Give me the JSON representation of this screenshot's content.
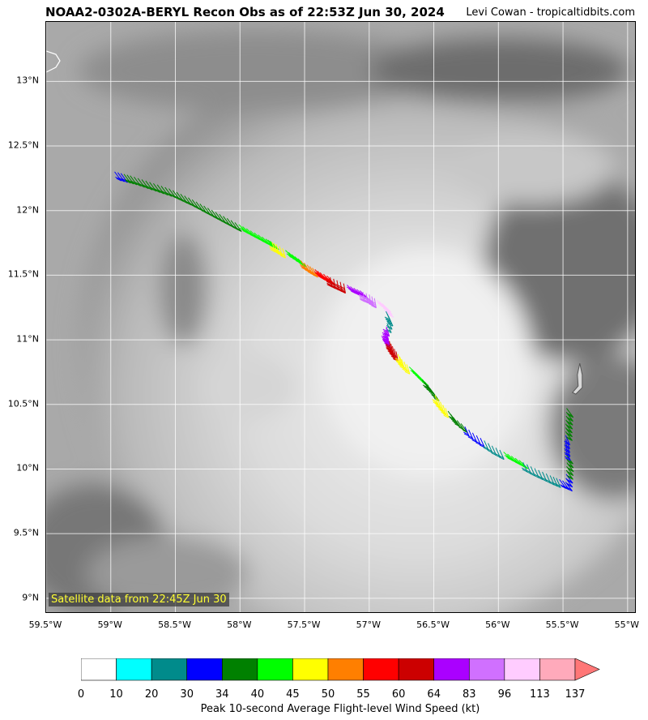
{
  "header": {
    "title": "NOAA2-0302A-BERYL Recon Obs as of 22:53Z Jun 30, 2024",
    "credit": "Levi Cowan - tropicaltidbits.com"
  },
  "map": {
    "satellite_label": "Satellite data from 22:45Z Jun 30",
    "lon_range": [
      -59.5,
      -54.93
    ],
    "lat_range": [
      8.88,
      13.46
    ],
    "lat_ticks": [
      "13°N",
      "12.5°N",
      "12°N",
      "11.5°N",
      "11°N",
      "10.5°N",
      "10°N",
      "9.5°N",
      "9°N"
    ],
    "lon_ticks": [
      "59.5°W",
      "59°W",
      "58.5°W",
      "58°W",
      "57.5°W",
      "57°W",
      "56.5°W",
      "56°W",
      "55.5°W",
      "55°W"
    ],
    "flight_track": [
      {
        "lon": -58.97,
        "lat": 12.3,
        "kt": 30
      },
      {
        "lon": -58.85,
        "lat": 12.27,
        "kt": 37
      },
      {
        "lon": -58.7,
        "lat": 12.22,
        "kt": 37
      },
      {
        "lon": -58.55,
        "lat": 12.17,
        "kt": 37
      },
      {
        "lon": -58.4,
        "lat": 12.1,
        "kt": 37
      },
      {
        "lon": -58.25,
        "lat": 12.02,
        "kt": 37
      },
      {
        "lon": -58.1,
        "lat": 11.94,
        "kt": 37
      },
      {
        "lon": -57.95,
        "lat": 11.86,
        "kt": 42
      },
      {
        "lon": -57.8,
        "lat": 11.78,
        "kt": 42
      },
      {
        "lon": -57.72,
        "lat": 11.74,
        "kt": 47
      },
      {
        "lon": -57.6,
        "lat": 11.66,
        "kt": 42
      },
      {
        "lon": -57.48,
        "lat": 11.58,
        "kt": 52
      },
      {
        "lon": -57.38,
        "lat": 11.52,
        "kt": 57
      },
      {
        "lon": -57.25,
        "lat": 11.46,
        "kt": 62
      },
      {
        "lon": -57.12,
        "lat": 11.4,
        "kt": 70
      },
      {
        "lon": -57.0,
        "lat": 11.35,
        "kt": 90
      },
      {
        "lon": -56.9,
        "lat": 11.28,
        "kt": 105
      },
      {
        "lon": -56.85,
        "lat": 11.18,
        "kt": 25
      },
      {
        "lon": -56.88,
        "lat": 11.05,
        "kt": 75
      },
      {
        "lon": -56.82,
        "lat": 10.95,
        "kt": 62
      },
      {
        "lon": -56.75,
        "lat": 10.85,
        "kt": 47
      },
      {
        "lon": -56.65,
        "lat": 10.75,
        "kt": 42
      },
      {
        "lon": -56.55,
        "lat": 10.65,
        "kt": 37
      },
      {
        "lon": -56.45,
        "lat": 10.52,
        "kt": 47
      },
      {
        "lon": -56.35,
        "lat": 10.4,
        "kt": 37
      },
      {
        "lon": -56.2,
        "lat": 10.28,
        "kt": 32
      },
      {
        "lon": -56.05,
        "lat": 10.18,
        "kt": 25
      },
      {
        "lon": -55.9,
        "lat": 10.1,
        "kt": 42
      },
      {
        "lon": -55.75,
        "lat": 10.02,
        "kt": 25
      },
      {
        "lon": -55.6,
        "lat": 9.95,
        "kt": 25
      },
      {
        "lon": -55.48,
        "lat": 9.9,
        "kt": 30
      },
      {
        "lon": -55.47,
        "lat": 10.05,
        "kt": 37
      },
      {
        "lon": -55.48,
        "lat": 10.2,
        "kt": 32
      },
      {
        "lon": -55.48,
        "lat": 10.35,
        "kt": 37
      },
      {
        "lon": -55.47,
        "lat": 10.5,
        "kt": 37
      }
    ],
    "aircraft_position": {
      "lon": -55.37,
      "lat": 10.68
    }
  },
  "colorbar": {
    "label": "Peak 10-second Average Flight-level Wind Speed (kt)",
    "ticks": [
      "0",
      "10",
      "20",
      "30",
      "34",
      "40",
      "45",
      "50",
      "55",
      "60",
      "64",
      "83",
      "96",
      "113",
      "137"
    ],
    "colors": [
      "#ffffff",
      "#00ffff",
      "#008b8b",
      "#0000ff",
      "#008000",
      "#00ff00",
      "#ffff00",
      "#ff7f00",
      "#ff0000",
      "#cc0000",
      "#aa00ff",
      "#d070ff",
      "#ffccff",
      "#ffaabb"
    ],
    "extend_color": "#ff7777"
  }
}
